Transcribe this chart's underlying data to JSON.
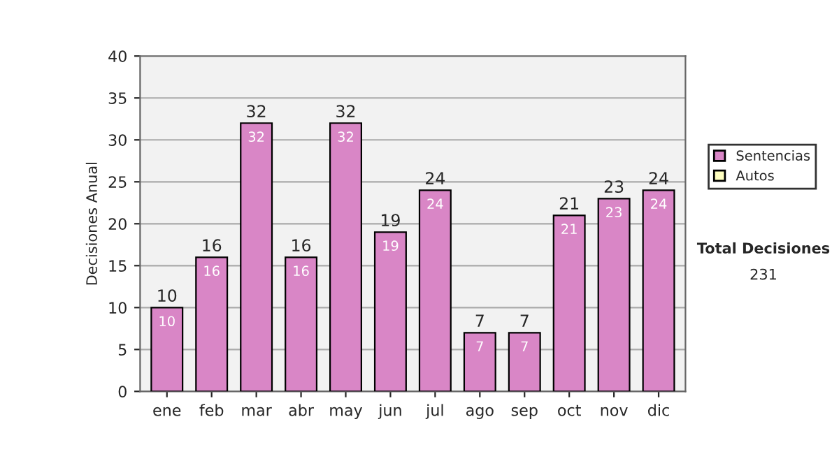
{
  "chart_data": {
    "type": "bar",
    "stacked": true,
    "ylabel": "Decisiones Anual",
    "categories": [
      "ene",
      "feb",
      "mar",
      "abr",
      "may",
      "jun",
      "jul",
      "ago",
      "sep",
      "oct",
      "nov",
      "dic"
    ],
    "series": [
      {
        "name": "Sentencias",
        "color": "#d986c6",
        "values": [
          10,
          16,
          32,
          16,
          32,
          19,
          24,
          7,
          7,
          21,
          23,
          24
        ],
        "value_labels": [
          "10",
          "16",
          "32",
          "16",
          "32",
          "19",
          "24",
          "7",
          "7",
          "21",
          "23",
          "24"
        ]
      },
      {
        "name": "Autos",
        "color": "#ffffc0",
        "values": [
          null,
          null,
          null,
          null,
          null,
          null,
          null,
          null,
          null,
          null,
          null,
          null
        ]
      }
    ],
    "totals": [
      "10",
      "16",
      "32",
      "16",
      "32",
      "19",
      "24",
      "7",
      "7",
      "21",
      "23",
      "24"
    ],
    "ylim": [
      0,
      40
    ],
    "yticks": [
      0,
      5,
      10,
      15,
      20,
      25,
      30,
      35,
      40
    ],
    "grid": "y",
    "legend": "right",
    "annotations": [
      "Total Decisiones",
      "231"
    ]
  }
}
